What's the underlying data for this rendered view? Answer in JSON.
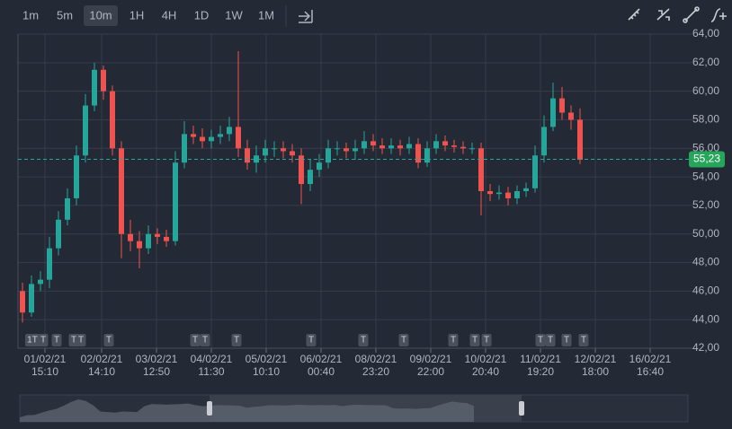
{
  "chart_data": {
    "type": "candlestick",
    "toolbar": {
      "intervals": [
        "1m",
        "5m",
        "10m",
        "1H",
        "4H",
        "1D",
        "1W",
        "1M"
      ],
      "active_index": 2
    },
    "up_color": "#26a69a",
    "down_color": "#ef5350",
    "grid": true,
    "open": [
      46,
      44.5,
      46.5,
      46.8,
      49,
      51,
      52.5,
      55.5,
      59,
      61.5,
      60,
      56,
      50,
      49.5,
      49,
      50,
      49.8,
      49.5,
      55,
      57,
      56.8,
      56.5,
      56.8,
      57,
      57.5,
      56,
      55,
      55.5,
      56,
      56,
      55.8,
      55.5,
      53.5,
      54.5,
      55,
      56,
      56,
      55.8,
      56,
      56.5,
      56.2,
      56,
      56.2,
      56,
      56.3,
      55,
      56,
      56.5,
      56.2,
      56.1,
      56,
      56,
      53,
      52.8,
      52.9,
      52.5,
      53,
      53.2,
      55.5,
      57.5,
      59.5,
      58.5,
      58
    ],
    "high": [
      46.6,
      47.1,
      47.4,
      49.8,
      51.6,
      53.2,
      56.2,
      59.8,
      62,
      61.8,
      60.4,
      56.5,
      51,
      50.2,
      50.6,
      50.4,
      50.3,
      55.8,
      57.9,
      57.6,
      57.4,
      57.3,
      57.6,
      58.2,
      62.8,
      56.6,
      56.2,
      56.6,
      56.5,
      56.5,
      56.3,
      56,
      55.2,
      55.6,
      56.6,
      56.5,
      56.4,
      56.6,
      57.2,
      57,
      56.7,
      56.7,
      56.6,
      56.8,
      56.7,
      56.5,
      57,
      56.9,
      56.6,
      56.5,
      56.4,
      56.4,
      53.5,
      53.4,
      53.3,
      53.4,
      53.6,
      56.2,
      58.3,
      60.6,
      60.3,
      59,
      58.8
    ],
    "low": [
      43.8,
      44.2,
      46,
      46.2,
      48.5,
      50.6,
      52,
      55,
      58.6,
      59.4,
      55.5,
      48.3,
      48.8,
      47.6,
      48.6,
      49.3,
      49.1,
      49.2,
      54.6,
      56.3,
      56,
      56,
      56.3,
      56.5,
      55.4,
      54.5,
      54.3,
      55,
      55.4,
      55.3,
      55,
      52.1,
      53,
      54,
      54.6,
      55.5,
      55.3,
      55.2,
      55.6,
      55.8,
      55.6,
      55.6,
      55.5,
      55.6,
      54.6,
      54.7,
      55.6,
      55.8,
      55.7,
      55.6,
      55.6,
      51.3,
      52.3,
      52.4,
      52,
      52.1,
      52.6,
      52.9,
      55,
      57.2,
      58,
      57.3,
      54.9
    ],
    "close": [
      44.5,
      46.5,
      46.8,
      49,
      51,
      52.5,
      55.5,
      59,
      61.5,
      60,
      56,
      50,
      49.5,
      49,
      50,
      49.8,
      49.5,
      55,
      57,
      56.8,
      56.5,
      56.8,
      57,
      57.5,
      56,
      55,
      55.5,
      56,
      56,
      55.8,
      55.5,
      53.5,
      54.5,
      55,
      56,
      56,
      55.8,
      56,
      56.5,
      56.2,
      56,
      56.2,
      56,
      56.3,
      55,
      56,
      56.5,
      56.2,
      56.1,
      56,
      56,
      53,
      52.8,
      52.9,
      52.5,
      53,
      53.2,
      55.5,
      57.5,
      59.5,
      58.5,
      58,
      55.2
    ],
    "xlim": [
      0,
      75
    ],
    "xticks": [
      {
        "value": 3,
        "label": "01/02/21 15:10"
      },
      {
        "value": 9.3,
        "label": "02/02/21 14:10"
      },
      {
        "value": 15.4,
        "label": "03/02/21 12:50"
      },
      {
        "value": 21.5,
        "label": "04/02/21 11:30"
      },
      {
        "value": 27.6,
        "label": "05/02/21 10:10"
      },
      {
        "value": 33.7,
        "label": "06/02/21 00:40"
      },
      {
        "value": 39.8,
        "label": "08/02/21 23:20"
      },
      {
        "value": 45.9,
        "label": "09/02/21 22:00"
      },
      {
        "value": 52,
        "label": "10/02/21 20:40"
      },
      {
        "value": 58.1,
        "label": "11/02/21 19:20"
      },
      {
        "value": 64.2,
        "label": "12/02/21 18:00"
      },
      {
        "value": 70.3,
        "label": "16/02/21 16:40"
      }
    ],
    "ylim": [
      42,
      64
    ],
    "yticks": [
      {
        "value": 42,
        "label": "42,00"
      },
      {
        "value": 44,
        "label": "44,00"
      },
      {
        "value": 46,
        "label": "46,00"
      },
      {
        "value": 48,
        "label": "48,00"
      },
      {
        "value": 50,
        "label": "50,00"
      },
      {
        "value": 52,
        "label": "52,00"
      },
      {
        "value": 54,
        "label": "54,00"
      },
      {
        "value": 56,
        "label": "56,00"
      },
      {
        "value": 58,
        "label": "58,00"
      },
      {
        "value": 60,
        "label": "60,00"
      },
      {
        "value": 62,
        "label": "62,00"
      },
      {
        "value": 64,
        "label": "64,00"
      }
    ],
    "last_price": {
      "value": 55.23,
      "label": "55,23"
    },
    "markers": [
      {
        "x": 1.6,
        "label": "1T"
      },
      {
        "x": 2.8,
        "label": "T"
      },
      {
        "x": 4.3,
        "label": "T"
      },
      {
        "x": 6.2,
        "label": "T"
      },
      {
        "x": 7,
        "label": "T"
      },
      {
        "x": 10.1,
        "label": "T"
      },
      {
        "x": 19.7,
        "label": "T"
      },
      {
        "x": 20.8,
        "label": "T"
      },
      {
        "x": 24.3,
        "label": "T"
      },
      {
        "x": 32.6,
        "label": "T"
      },
      {
        "x": 38.4,
        "label": "T"
      },
      {
        "x": 42.9,
        "label": "T"
      },
      {
        "x": 48.4,
        "label": "T"
      },
      {
        "x": 50.8,
        "label": "T"
      },
      {
        "x": 52.1,
        "label": "T"
      },
      {
        "x": 58.1,
        "label": "T"
      },
      {
        "x": 59.2,
        "label": "T"
      },
      {
        "x": 61,
        "label": "T"
      },
      {
        "x": 62.9,
        "label": "T"
      }
    ]
  }
}
